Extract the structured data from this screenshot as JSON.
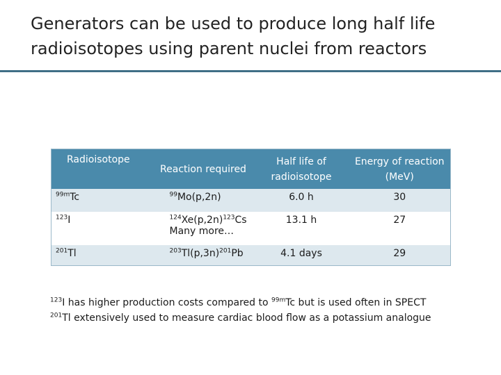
{
  "slide": {
    "title_line1": "Generators can be used to produce long half life",
    "title_line2": "radioisotopes using parent nuclei from reactors",
    "accent_color": "#3f6e86"
  },
  "table": {
    "header_color": "#4a8aab",
    "row_band_color": "#dde8ee",
    "headers": {
      "radioisotope": "Radioisotope",
      "reaction": "Reaction required",
      "half_life": "Half life of radioisotope",
      "energy": "Energy of reaction (MeV)"
    },
    "rows": [
      {
        "iso_mass": "99m",
        "iso_symbol": "Tc",
        "rx_mass": "99",
        "rx_text": "Mo(p,2n)",
        "half_life": "6.0 h",
        "energy": "30"
      },
      {
        "iso_mass": "123",
        "iso_symbol": "I",
        "rx_mass": "124",
        "rx_text": "Xe(p,2n)",
        "rx_mass2": "123",
        "rx_text2": "Cs",
        "rx_note": "Many more…",
        "half_life": "13.1 h",
        "energy": "27"
      },
      {
        "iso_mass": "201",
        "iso_symbol": "Tl",
        "rx_mass": "203",
        "rx_text": "Tl(p,3n)",
        "rx_mass2": "201",
        "rx_text2": "Pb",
        "half_life": "4.1 days",
        "energy": "29"
      }
    ]
  },
  "notes": {
    "line1": {
      "mass1": "123",
      "text1": "I has higher production costs compared to ",
      "mass2": "99m",
      "text2": "Tc but is used often in SPECT"
    },
    "line2": {
      "mass1": "201",
      "text1": "Tl extensively used to measure cardiac blood flow as a potassium analogue"
    }
  }
}
